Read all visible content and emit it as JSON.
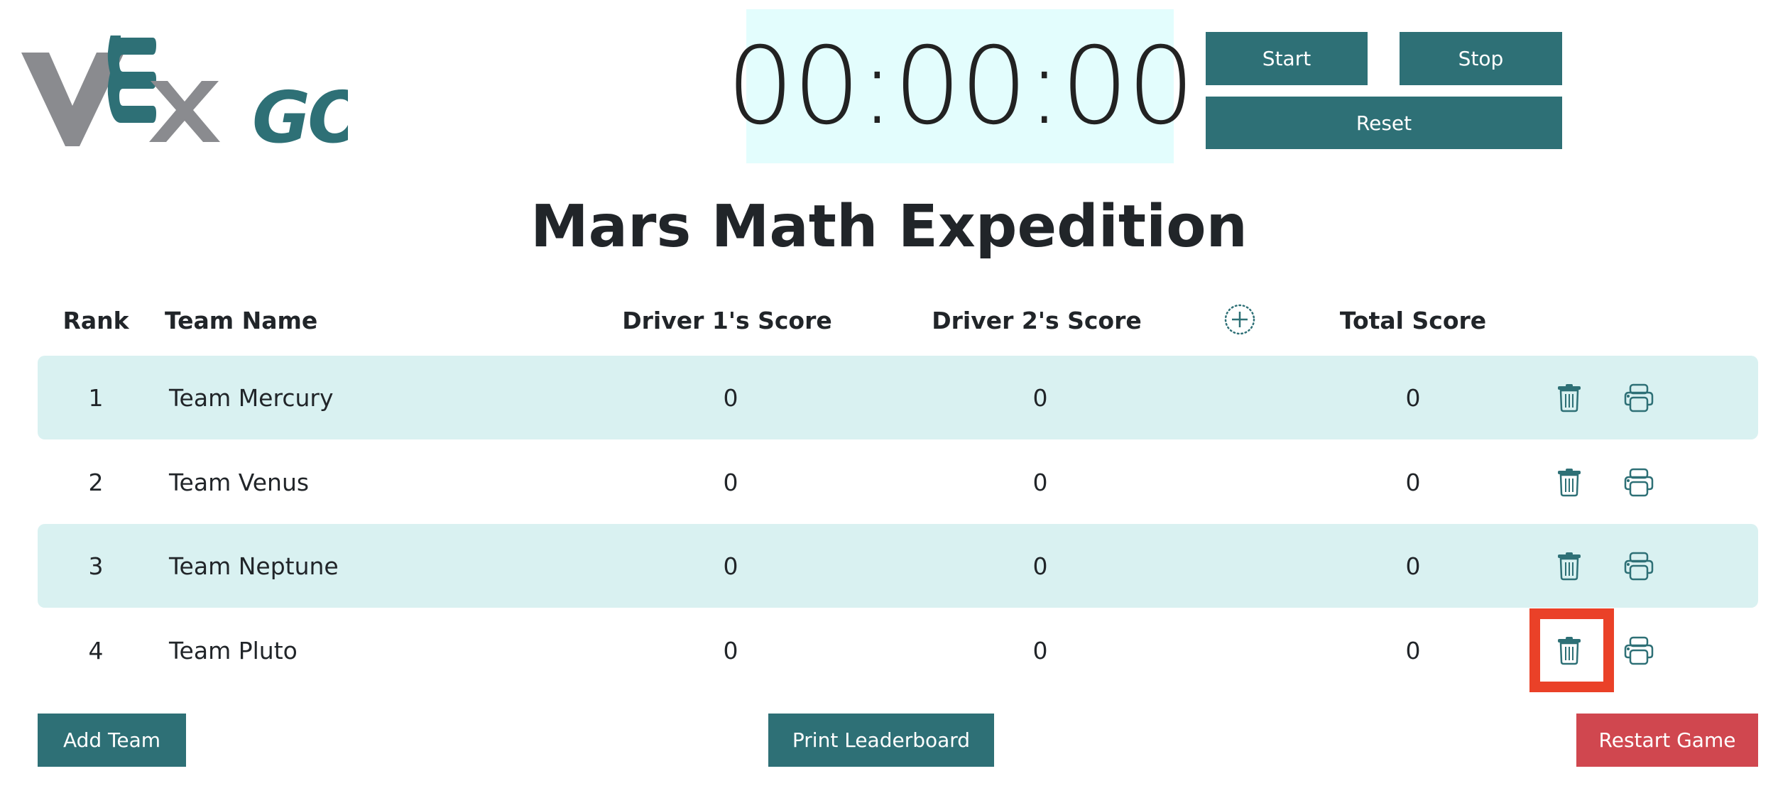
{
  "logo": {
    "text": "VEX GO",
    "colors": {
      "gray": "#8a8b8f",
      "teal": "#2e7076"
    }
  },
  "timer": {
    "value": "00:00:00"
  },
  "timer_controls": {
    "start": "Start",
    "stop": "Stop",
    "reset": "Reset"
  },
  "title": "Mars Math Expedition",
  "table": {
    "headers": {
      "rank": "Rank",
      "team": "Team Name",
      "driver1": "Driver 1's Score",
      "driver2": "Driver 2's Score",
      "add_column_icon": "plus-circle-icon",
      "total": "Total Score"
    },
    "rows": [
      {
        "rank": "1",
        "team": "Team Mercury",
        "driver1": "0",
        "driver2": "0",
        "total": "0"
      },
      {
        "rank": "2",
        "team": "Team Venus",
        "driver1": "0",
        "driver2": "0",
        "total": "0"
      },
      {
        "rank": "3",
        "team": "Team Neptune",
        "driver1": "0",
        "driver2": "0",
        "total": "0"
      },
      {
        "rank": "4",
        "team": "Team Pluto",
        "driver1": "0",
        "driver2": "0",
        "total": "0"
      }
    ]
  },
  "footer": {
    "add_team": "Add Team",
    "print_leaderboard": "Print Leaderboard",
    "restart_game": "Restart Game"
  },
  "colors": {
    "accent": "#2e7076",
    "row_shade": "#d9f1f1",
    "timer_bg": "#e3fdfd",
    "danger": "#d0474f",
    "highlight": "#ea4128"
  }
}
